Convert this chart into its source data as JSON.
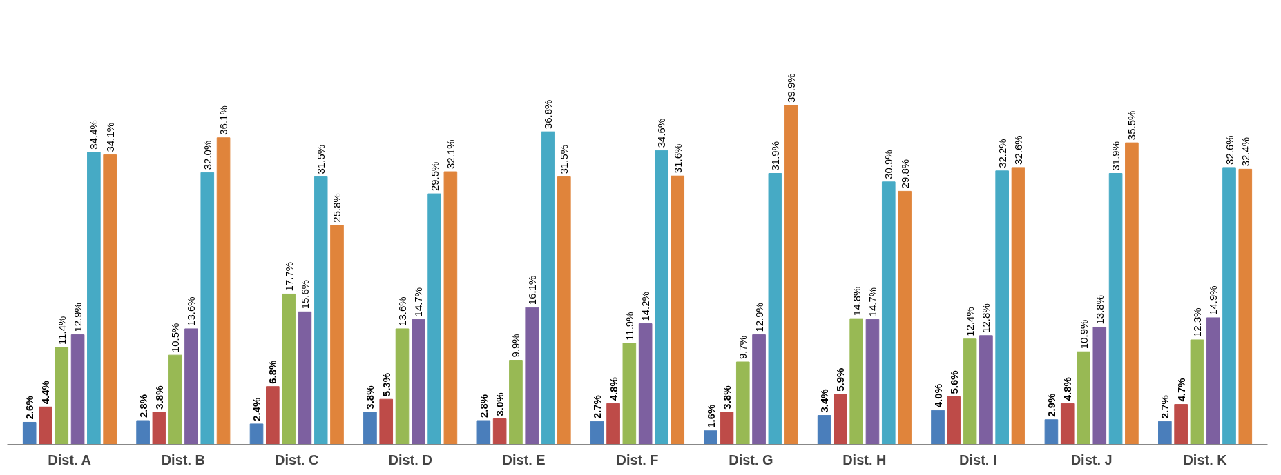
{
  "chart_data": {
    "type": "bar",
    "categories": [
      "Dist. A",
      "Dist. B",
      "Dist. C",
      "Dist. D",
      "Dist. E",
      "Dist. F",
      "Dist. G",
      "Dist. H",
      "Dist. I",
      "Dist. J",
      "Dist. K"
    ],
    "tick_labels": "x",
    "grid": false,
    "series": [
      {
        "color": "#4a7ebb",
        "values": [
          2.6,
          2.8,
          2.4,
          3.8,
          2.8,
          2.7,
          1.6,
          3.4,
          4.0,
          2.9,
          2.7
        ],
        "value_labels": [
          "2.6%",
          "2.8%",
          "2.4%",
          "3.8%",
          "2.8%",
          "2.7%",
          "1.6%",
          "3.4%",
          "4.0%",
          "2.9%",
          "2.7%"
        ]
      },
      {
        "color": "#be4b48",
        "values": [
          4.4,
          3.8,
          6.8,
          5.3,
          3.0,
          4.8,
          3.8,
          5.9,
          5.6,
          4.8,
          4.7
        ],
        "value_labels": [
          "4.4%",
          "3.8%",
          "6.8%",
          "5.3%",
          "3.0%",
          "4.8%",
          "3.8%",
          "5.9%",
          "5.6%",
          "4.8%",
          "4.7%"
        ]
      },
      {
        "color": "#98b954",
        "values": [
          11.4,
          10.5,
          17.7,
          13.6,
          9.9,
          11.9,
          9.7,
          14.8,
          12.4,
          10.9,
          12.3
        ],
        "value_labels": [
          "11.4%",
          "10.5%",
          "17.7%",
          "13.6%",
          "9.9%",
          "11.9%",
          "9.7%",
          "14.8%",
          "12.4%",
          "10.9%",
          "12.3%"
        ]
      },
      {
        "color": "#7d60a0",
        "values": [
          12.9,
          13.6,
          15.6,
          14.7,
          16.1,
          14.2,
          12.9,
          14.7,
          12.8,
          13.8,
          14.9
        ],
        "value_labels": [
          "12.9%",
          "13.6%",
          "15.6%",
          "14.7%",
          "16.1%",
          "14.2%",
          "12.9%",
          "14.7%",
          "12.8%",
          "13.8%",
          "14.9%"
        ]
      },
      {
        "color": "#46aac5",
        "values": [
          34.4,
          32.0,
          31.5,
          29.5,
          36.8,
          34.6,
          31.9,
          30.9,
          32.2,
          31.9,
          32.6
        ],
        "value_labels": [
          "34.4%",
          "32.0%",
          "31.5%",
          "29.5%",
          "36.8%",
          "34.6%",
          "31.9%",
          "30.9%",
          "32.2%",
          "31.9%",
          "32.6%"
        ]
      },
      {
        "color": "#e0843b",
        "values": [
          34.1,
          36.1,
          25.8,
          32.1,
          31.5,
          31.6,
          39.9,
          29.8,
          32.6,
          35.5,
          32.4
        ],
        "value_labels": [
          "34.1%",
          "36.1%",
          "25.8%",
          "32.1%",
          "31.5%",
          "31.6%",
          "39.9%",
          "29.8%",
          "32.6%",
          "35.5%",
          "32.4%"
        ]
      }
    ]
  }
}
